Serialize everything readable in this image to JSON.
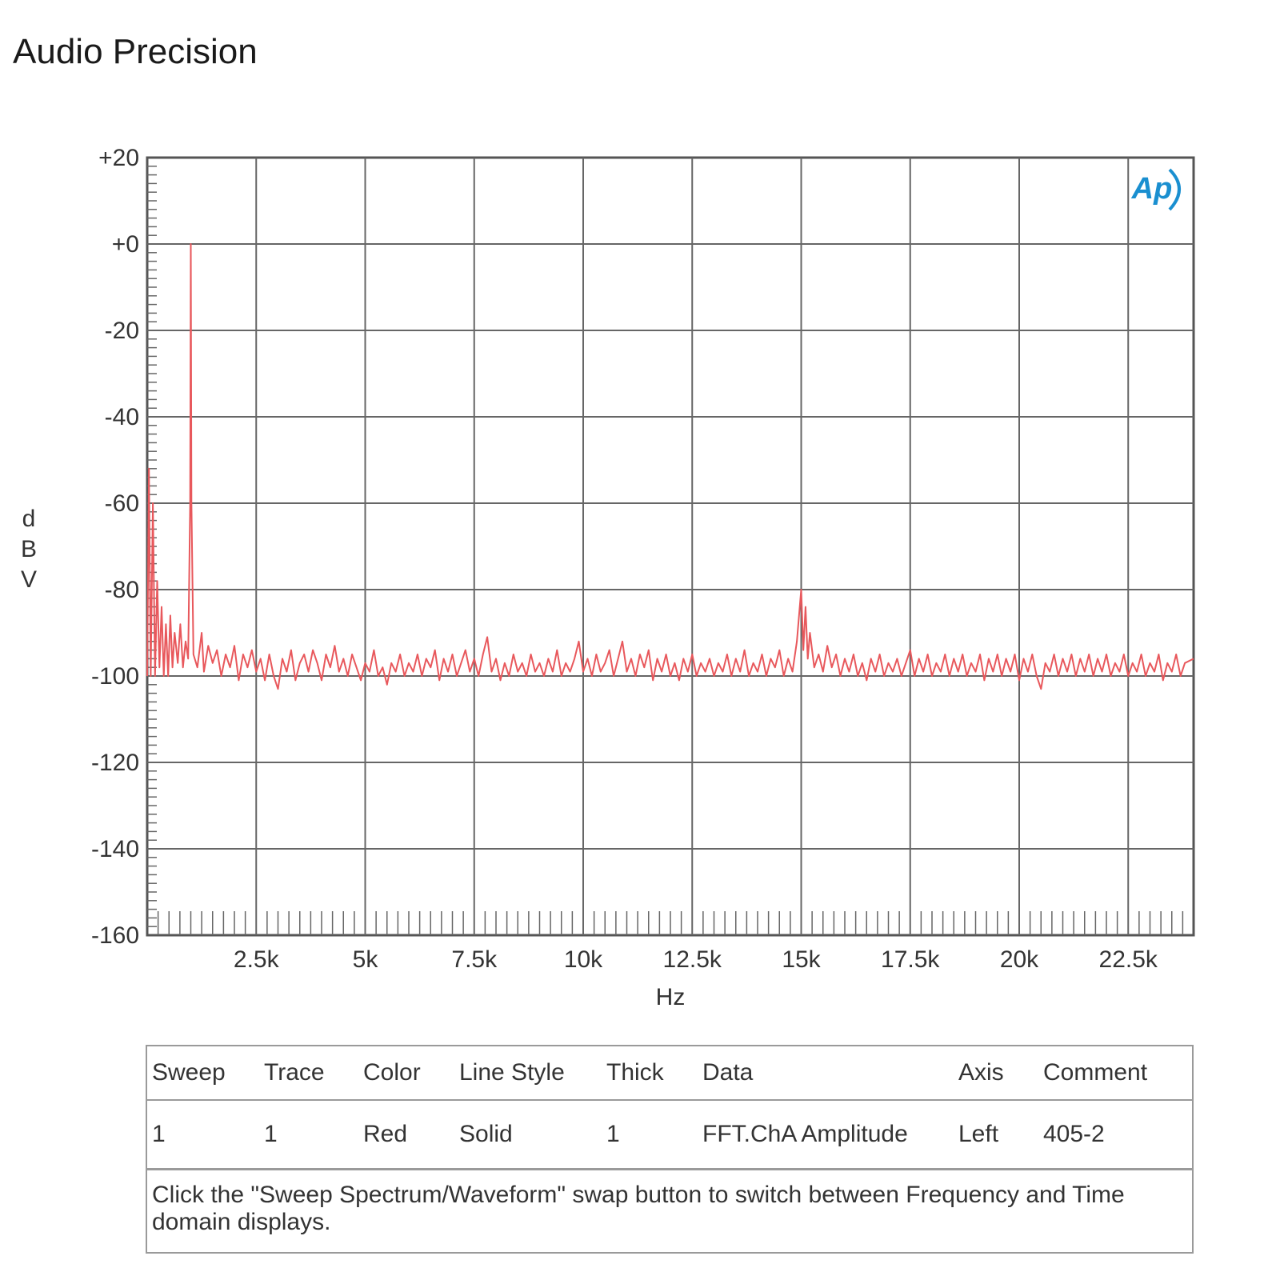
{
  "page": {
    "title": "Audio Precision",
    "logo_text": "Ap"
  },
  "chart_data": {
    "type": "line",
    "title": "",
    "xlabel": "Hz",
    "ylabel": "dBV",
    "xlim": [
      0,
      24000
    ],
    "ylim": [
      -160,
      20
    ],
    "grid": true,
    "x_ticks": [
      {
        "value": 2500,
        "label": "2.5k"
      },
      {
        "value": 5000,
        "label": "5k"
      },
      {
        "value": 7500,
        "label": "7.5k"
      },
      {
        "value": 10000,
        "label": "10k"
      },
      {
        "value": 12500,
        "label": "12.5k"
      },
      {
        "value": 15000,
        "label": "15k"
      },
      {
        "value": 17500,
        "label": "17.5k"
      },
      {
        "value": 20000,
        "label": "20k"
      },
      {
        "value": 22500,
        "label": "22.5k"
      }
    ],
    "y_ticks": [
      {
        "value": 20,
        "label": "+20"
      },
      {
        "value": 0,
        "label": "+0"
      },
      {
        "value": -20,
        "label": "-20"
      },
      {
        "value": -40,
        "label": "-40"
      },
      {
        "value": -60,
        "label": "-60"
      },
      {
        "value": -80,
        "label": "-80"
      },
      {
        "value": -100,
        "label": "-100"
      },
      {
        "value": -120,
        "label": "-120"
      },
      {
        "value": -140,
        "label": "-140"
      },
      {
        "value": -160,
        "label": "-160"
      }
    ],
    "series": [
      {
        "color": "#e8585c",
        "points": [
          [
            0,
            -100
          ],
          [
            40,
            -52
          ],
          [
            80,
            -100
          ],
          [
            130,
            -60
          ],
          [
            180,
            -100
          ],
          [
            230,
            -78
          ],
          [
            280,
            -98
          ],
          [
            330,
            -84
          ],
          [
            380,
            -100
          ],
          [
            430,
            -88
          ],
          [
            480,
            -100
          ],
          [
            530,
            -86
          ],
          [
            580,
            -98
          ],
          [
            630,
            -90
          ],
          [
            700,
            -97
          ],
          [
            760,
            -88
          ],
          [
            820,
            -98
          ],
          [
            880,
            -92
          ],
          [
            940,
            -96
          ],
          [
            985,
            -60
          ],
          [
            1000,
            0
          ],
          [
            1015,
            -60
          ],
          [
            1060,
            -95
          ],
          [
            1150,
            -98
          ],
          [
            1250,
            -90
          ],
          [
            1300,
            -99
          ],
          [
            1400,
            -93
          ],
          [
            1500,
            -97
          ],
          [
            1600,
            -94
          ],
          [
            1700,
            -100
          ],
          [
            1800,
            -95
          ],
          [
            1900,
            -98
          ],
          [
            2000,
            -93
          ],
          [
            2100,
            -101
          ],
          [
            2200,
            -95
          ],
          [
            2300,
            -98
          ],
          [
            2400,
            -94
          ],
          [
            2500,
            -99
          ],
          [
            2600,
            -96
          ],
          [
            2700,
            -101
          ],
          [
            2800,
            -95
          ],
          [
            2900,
            -100
          ],
          [
            3000,
            -103
          ],
          [
            3100,
            -96
          ],
          [
            3200,
            -99
          ],
          [
            3300,
            -94
          ],
          [
            3400,
            -101
          ],
          [
            3500,
            -97
          ],
          [
            3600,
            -95
          ],
          [
            3700,
            -99
          ],
          [
            3800,
            -94
          ],
          [
            3900,
            -97
          ],
          [
            4000,
            -101
          ],
          [
            4100,
            -95
          ],
          [
            4200,
            -98
          ],
          [
            4300,
            -93
          ],
          [
            4400,
            -99
          ],
          [
            4500,
            -96
          ],
          [
            4600,
            -100
          ],
          [
            4700,
            -95
          ],
          [
            4800,
            -98
          ],
          [
            4900,
            -101
          ],
          [
            5000,
            -97
          ],
          [
            5100,
            -99
          ],
          [
            5200,
            -94
          ],
          [
            5300,
            -100
          ],
          [
            5400,
            -98
          ],
          [
            5500,
            -102
          ],
          [
            5600,
            -97
          ],
          [
            5700,
            -99
          ],
          [
            5800,
            -95
          ],
          [
            5900,
            -100
          ],
          [
            6000,
            -97
          ],
          [
            6100,
            -99
          ],
          [
            6200,
            -95
          ],
          [
            6300,
            -100
          ],
          [
            6400,
            -96
          ],
          [
            6500,
            -98
          ],
          [
            6600,
            -94
          ],
          [
            6700,
            -101
          ],
          [
            6800,
            -96
          ],
          [
            6900,
            -99
          ],
          [
            7000,
            -95
          ],
          [
            7100,
            -100
          ],
          [
            7200,
            -97
          ],
          [
            7300,
            -94
          ],
          [
            7400,
            -99
          ],
          [
            7500,
            -96
          ],
          [
            7600,
            -100
          ],
          [
            7700,
            -95
          ],
          [
            7800,
            -91
          ],
          [
            7900,
            -99
          ],
          [
            8000,
            -96
          ],
          [
            8100,
            -101
          ],
          [
            8200,
            -97
          ],
          [
            8300,
            -100
          ],
          [
            8400,
            -95
          ],
          [
            8500,
            -99
          ],
          [
            8600,
            -97
          ],
          [
            8700,
            -100
          ],
          [
            8800,
            -95
          ],
          [
            8900,
            -99
          ],
          [
            9000,
            -97
          ],
          [
            9100,
            -100
          ],
          [
            9200,
            -96
          ],
          [
            9300,
            -99
          ],
          [
            9400,
            -94
          ],
          [
            9500,
            -100
          ],
          [
            9600,
            -97
          ],
          [
            9700,
            -99
          ],
          [
            9800,
            -96
          ],
          [
            9900,
            -92
          ],
          [
            10000,
            -99
          ],
          [
            10100,
            -96
          ],
          [
            10200,
            -100
          ],
          [
            10300,
            -95
          ],
          [
            10400,
            -99
          ],
          [
            10500,
            -97
          ],
          [
            10600,
            -94
          ],
          [
            10700,
            -100
          ],
          [
            10800,
            -96
          ],
          [
            10900,
            -92
          ],
          [
            11000,
            -99
          ],
          [
            11100,
            -96
          ],
          [
            11200,
            -100
          ],
          [
            11300,
            -95
          ],
          [
            11400,
            -98
          ],
          [
            11500,
            -94
          ],
          [
            11600,
            -101
          ],
          [
            11700,
            -96
          ],
          [
            11800,
            -99
          ],
          [
            11900,
            -95
          ],
          [
            12000,
            -100
          ],
          [
            12100,
            -97
          ],
          [
            12200,
            -101
          ],
          [
            12300,
            -96
          ],
          [
            12400,
            -99
          ],
          [
            12500,
            -95
          ],
          [
            12600,
            -100
          ],
          [
            12700,
            -97
          ],
          [
            12800,
            -99
          ],
          [
            12900,
            -96
          ],
          [
            13000,
            -100
          ],
          [
            13100,
            -97
          ],
          [
            13200,
            -99
          ],
          [
            13300,
            -95
          ],
          [
            13400,
            -100
          ],
          [
            13500,
            -96
          ],
          [
            13600,
            -99
          ],
          [
            13700,
            -94
          ],
          [
            13800,
            -100
          ],
          [
            13900,
            -97
          ],
          [
            14000,
            -99
          ],
          [
            14100,
            -95
          ],
          [
            14200,
            -100
          ],
          [
            14300,
            -96
          ],
          [
            14400,
            -98
          ],
          [
            14500,
            -94
          ],
          [
            14600,
            -100
          ],
          [
            14700,
            -96
          ],
          [
            14800,
            -99
          ],
          [
            14900,
            -92
          ],
          [
            15000,
            -80
          ],
          [
            15050,
            -94
          ],
          [
            15100,
            -84
          ],
          [
            15150,
            -96
          ],
          [
            15200,
            -90
          ],
          [
            15300,
            -98
          ],
          [
            15400,
            -95
          ],
          [
            15500,
            -99
          ],
          [
            15600,
            -93
          ],
          [
            15700,
            -98
          ],
          [
            15800,
            -95
          ],
          [
            15900,
            -100
          ],
          [
            16000,
            -96
          ],
          [
            16100,
            -99
          ],
          [
            16200,
            -95
          ],
          [
            16300,
            -100
          ],
          [
            16400,
            -97
          ],
          [
            16500,
            -101
          ],
          [
            16600,
            -96
          ],
          [
            16700,
            -99
          ],
          [
            16800,
            -95
          ],
          [
            16900,
            -100
          ],
          [
            17000,
            -97
          ],
          [
            17100,
            -99
          ],
          [
            17200,
            -96
          ],
          [
            17300,
            -100
          ],
          [
            17400,
            -97
          ],
          [
            17500,
            -94
          ],
          [
            17600,
            -100
          ],
          [
            17700,
            -96
          ],
          [
            17800,
            -99
          ],
          [
            17900,
            -95
          ],
          [
            18000,
            -100
          ],
          [
            18100,
            -97
          ],
          [
            18200,
            -99
          ],
          [
            18300,
            -95
          ],
          [
            18400,
            -100
          ],
          [
            18500,
            -96
          ],
          [
            18600,
            -99
          ],
          [
            18700,
            -95
          ],
          [
            18800,
            -100
          ],
          [
            18900,
            -97
          ],
          [
            19000,
            -99
          ],
          [
            19100,
            -95
          ],
          [
            19200,
            -101
          ],
          [
            19300,
            -96
          ],
          [
            19400,
            -99
          ],
          [
            19500,
            -95
          ],
          [
            19600,
            -100
          ],
          [
            19700,
            -96
          ],
          [
            19800,
            -99
          ],
          [
            19900,
            -95
          ],
          [
            20000,
            -101
          ],
          [
            20100,
            -96
          ],
          [
            20200,
            -99
          ],
          [
            20300,
            -95
          ],
          [
            20400,
            -100
          ],
          [
            20500,
            -103
          ],
          [
            20600,
            -97
          ],
          [
            20700,
            -99
          ],
          [
            20800,
            -95
          ],
          [
            20900,
            -100
          ],
          [
            21000,
            -96
          ],
          [
            21100,
            -99
          ],
          [
            21200,
            -95
          ],
          [
            21300,
            -100
          ],
          [
            21400,
            -96
          ],
          [
            21500,
            -99
          ],
          [
            21600,
            -95
          ],
          [
            21700,
            -100
          ],
          [
            21800,
            -96
          ],
          [
            21900,
            -99
          ],
          [
            22000,
            -95
          ],
          [
            22100,
            -100
          ],
          [
            22200,
            -97
          ],
          [
            22300,
            -99
          ],
          [
            22400,
            -95
          ],
          [
            22500,
            -100
          ],
          [
            22600,
            -97
          ],
          [
            22700,
            -99
          ],
          [
            22800,
            -95
          ],
          [
            22900,
            -100
          ],
          [
            23000,
            -97
          ],
          [
            23100,
            -99
          ],
          [
            23200,
            -95
          ],
          [
            23300,
            -101
          ],
          [
            23400,
            -97
          ],
          [
            23500,
            -99
          ],
          [
            23600,
            -95
          ],
          [
            23700,
            -100
          ],
          [
            23800,
            -97
          ],
          [
            24000,
            -96
          ]
        ]
      }
    ]
  },
  "legend": {
    "headers": [
      "Sweep",
      "Trace",
      "Color",
      "Line Style",
      "Thick",
      "Data",
      "Axis",
      "Comment"
    ],
    "rows": [
      [
        "1",
        "1",
        "Red",
        "Solid",
        "1",
        "FFT.ChA Amplitude",
        "Left",
        "405-2"
      ]
    ],
    "note": "Click the \"Sweep Spectrum/Waveform\" swap button to switch between Frequency and Time domain displays."
  }
}
